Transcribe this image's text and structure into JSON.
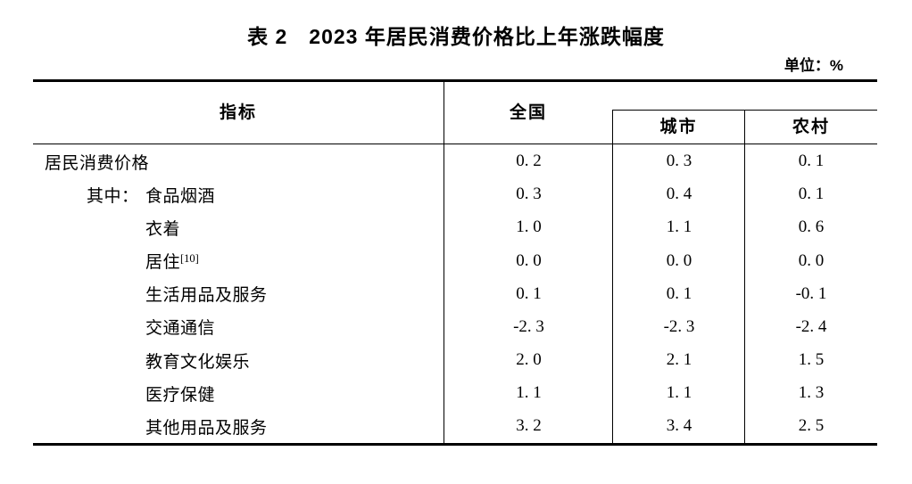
{
  "title": "表 2　2023 年居民消费价格比上年涨跌幅度",
  "unit_label": "单位：%",
  "chart_data": {
    "type": "table",
    "table_number": "表 2",
    "title": "2023 年居民消费价格比上年涨跌幅度",
    "unit": "%",
    "columns": [
      "指标",
      "全国",
      "城市",
      "农村"
    ],
    "rows": [
      {
        "prefix": "",
        "label": "居民消费价格",
        "sup": "",
        "indent": 0,
        "values": [
          0.2,
          0.3,
          0.1
        ]
      },
      {
        "prefix": "其中：",
        "label": "食品烟酒",
        "sup": "",
        "indent": 1,
        "values": [
          0.3,
          0.4,
          0.1
        ]
      },
      {
        "prefix": "",
        "label": "衣着",
        "sup": "",
        "indent": 2,
        "values": [
          1.0,
          1.1,
          0.6
        ]
      },
      {
        "prefix": "",
        "label": "居住",
        "sup": "[10]",
        "indent": 2,
        "values": [
          0.0,
          0.0,
          0.0
        ]
      },
      {
        "prefix": "",
        "label": "生活用品及服务",
        "sup": "",
        "indent": 2,
        "values": [
          0.1,
          0.1,
          -0.1
        ]
      },
      {
        "prefix": "",
        "label": "交通通信",
        "sup": "",
        "indent": 2,
        "values": [
          -2.3,
          -2.3,
          -2.4
        ]
      },
      {
        "prefix": "",
        "label": "教育文化娱乐",
        "sup": "",
        "indent": 2,
        "values": [
          2.0,
          2.1,
          1.5
        ]
      },
      {
        "prefix": "",
        "label": "医疗保健",
        "sup": "",
        "indent": 2,
        "values": [
          1.1,
          1.1,
          1.3
        ]
      },
      {
        "prefix": "",
        "label": "其他用品及服务",
        "sup": "",
        "indent": 2,
        "values": [
          3.2,
          3.4,
          2.5
        ]
      }
    ]
  }
}
